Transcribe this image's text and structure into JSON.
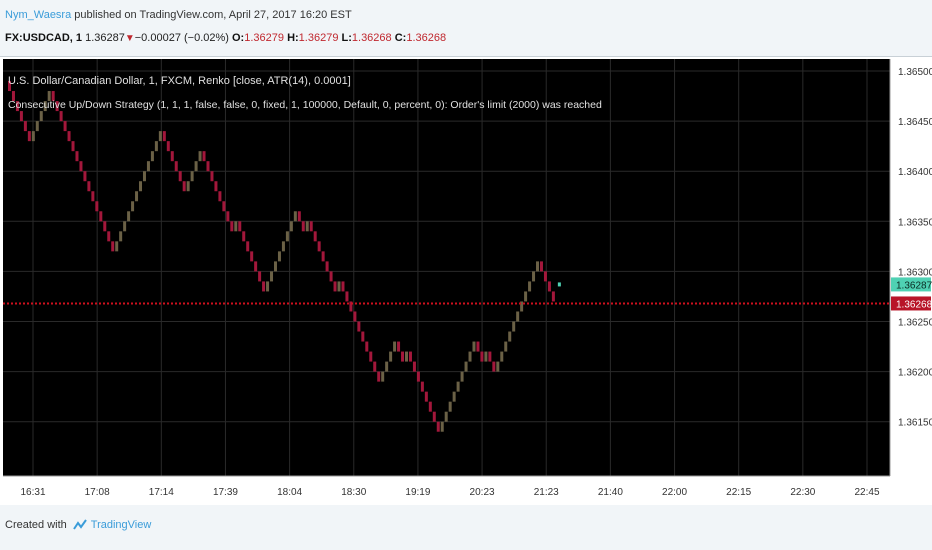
{
  "header": {
    "author": "Nym_Waesra",
    "published_text": "published on TradingView.com, April 27, 2017 16:20 EST",
    "symbol": "FX:USDCAD, 1",
    "price": "1.36287",
    "change": "−0.00027 (−0.02%)",
    "o_label": "O:",
    "o_value": "1.36279",
    "h_label": "H:",
    "h_value": "1.36279",
    "l_label": "L:",
    "l_value": "1.36268",
    "c_label": "C:",
    "c_value": "1.36268"
  },
  "chart_title": "U.S. Dollar/Canadian Dollar, 1, FXCM, Renko [close, ATR(14), 0.0001]",
  "strategy_text": "Consecutive Up/Down Strategy (1, 1, 1, false, false, 0, fixed, 1, 100000, Default, 0, percent, 0): Order's limit (2000) was reached",
  "footer": {
    "created_with": "Created with",
    "brand": "TradingView"
  },
  "colors": {
    "background": "#000000",
    "grid": "#2a2a2a",
    "up_brick": "#6b6146",
    "down_brick": "#a3173b",
    "price_line": "#d0101e",
    "last_price_badge": "#4fd1b3",
    "close_badge": "#b81428",
    "axis_text": "#cccccc"
  },
  "chart_data": {
    "type": "renko",
    "brick_size": 0.0001,
    "y_axis": {
      "ticks": [
        "1.36500",
        "1.36450",
        "1.36400",
        "1.36350",
        "1.36300",
        "1.36250",
        "1.36200",
        "1.36150"
      ],
      "tick_values": [
        1.365,
        1.3645,
        1.364,
        1.3635,
        1.363,
        1.3625,
        1.362,
        1.3615
      ],
      "range": [
        1.361,
        1.3651
      ]
    },
    "x_axis": {
      "ticks": [
        "16:31",
        "17:08",
        "17:14",
        "17:39",
        "18:04",
        "18:30",
        "19:19",
        "20:23",
        "21:23",
        "21:40",
        "22:00",
        "22:15",
        "22:30",
        "22:45"
      ]
    },
    "last_price": "1.36287",
    "last_price_value": 1.36287,
    "close_price": "1.36268",
    "close_price_value": 1.36268,
    "brick_closes": [
      1.3648,
      1.3647,
      1.3646,
      1.3645,
      1.3644,
      1.3643,
      1.3644,
      1.3645,
      1.3646,
      1.3647,
      1.3648,
      1.3647,
      1.3646,
      1.3645,
      1.3644,
      1.3643,
      1.3642,
      1.3641,
      1.364,
      1.3639,
      1.3638,
      1.3637,
      1.3636,
      1.3635,
      1.3634,
      1.3633,
      1.3632,
      1.3633,
      1.3634,
      1.3635,
      1.3636,
      1.3637,
      1.3638,
      1.3639,
      1.364,
      1.3641,
      1.3642,
      1.3643,
      1.3644,
      1.3643,
      1.3642,
      1.3641,
      1.364,
      1.3639,
      1.3638,
      1.3639,
      1.364,
      1.3641,
      1.3642,
      1.3641,
      1.364,
      1.3639,
      1.3638,
      1.3637,
      1.3636,
      1.3635,
      1.3634,
      1.3635,
      1.3634,
      1.3633,
      1.3632,
      1.3631,
      1.363,
      1.3629,
      1.3628,
      1.3629,
      1.363,
      1.3631,
      1.3632,
      1.3633,
      1.3634,
      1.3635,
      1.3636,
      1.3635,
      1.3634,
      1.3635,
      1.3634,
      1.3633,
      1.3632,
      1.3631,
      1.363,
      1.3629,
      1.3628,
      1.3629,
      1.3628,
      1.3627,
      1.3626,
      1.3625,
      1.3624,
      1.3623,
      1.3622,
      1.3621,
      1.362,
      1.3619,
      1.362,
      1.3621,
      1.3622,
      1.3623,
      1.3622,
      1.3621,
      1.3622,
      1.3621,
      1.362,
      1.3619,
      1.3618,
      1.3617,
      1.3616,
      1.3615,
      1.3614,
      1.3615,
      1.3616,
      1.3617,
      1.3618,
      1.3619,
      1.362,
      1.3621,
      1.3622,
      1.3623,
      1.3622,
      1.3621,
      1.3622,
      1.3621,
      1.362,
      1.3621,
      1.3622,
      1.3623,
      1.3624,
      1.3625,
      1.3626,
      1.3627,
      1.3628,
      1.3629,
      1.363,
      1.3631,
      1.363,
      1.3629,
      1.3628,
      1.3627
    ]
  }
}
